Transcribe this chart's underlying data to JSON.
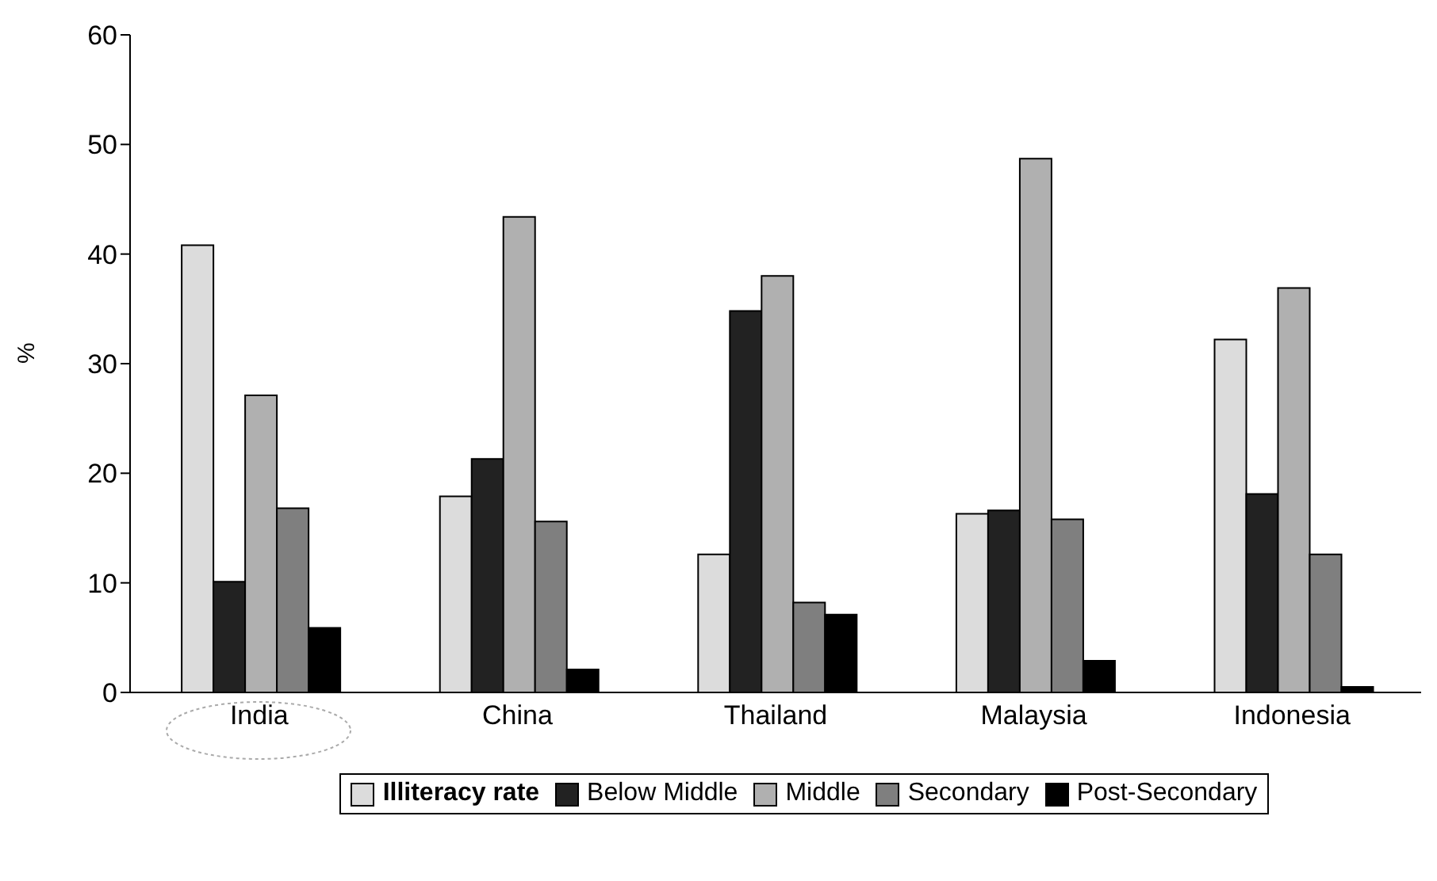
{
  "chart_data": {
    "type": "bar",
    "ylabel": "%",
    "categories": [
      "India",
      "China",
      "Thailand",
      "Malaysia",
      "Indonesia"
    ],
    "series": [
      {
        "name": "Illiteracy rate",
        "color": "#dcdcdc",
        "values": [
          40.8,
          17.9,
          12.6,
          16.3,
          32.2
        ]
      },
      {
        "name": "Below Middle",
        "color": "#222222",
        "values": [
          10.1,
          21.3,
          34.8,
          16.6,
          18.1
        ]
      },
      {
        "name": "Middle",
        "color": "#b0b0b0",
        "values": [
          27.1,
          43.4,
          38.0,
          48.7,
          36.9
        ]
      },
      {
        "name": "Secondary",
        "color": "#7f7f7f",
        "values": [
          16.8,
          15.6,
          8.2,
          15.8,
          12.6
        ]
      },
      {
        "name": "Post-Secondary",
        "color": "#000000",
        "values": [
          5.9,
          2.1,
          7.1,
          2.9,
          0.5
        ]
      }
    ],
    "ylim": [
      0,
      60
    ],
    "yticks": [
      0,
      10,
      20,
      30,
      40,
      50,
      60
    ],
    "grid": false,
    "legend": "bottom"
  }
}
